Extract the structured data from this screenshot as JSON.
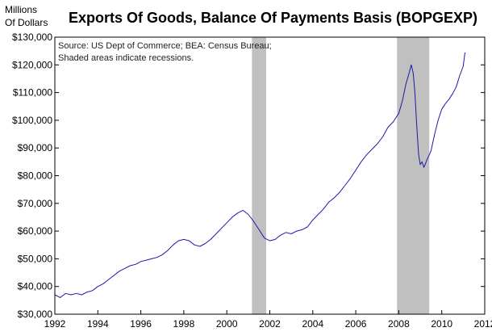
{
  "chart_data": {
    "type": "line",
    "title": "Exports Of Goods, Balance Of Payments Basis (BOPGEXP)",
    "ylabel_lines": [
      "Millions",
      "Of Dollars"
    ],
    "source_lines": [
      "Source: US Dept of Commerce; BEA: Census Bureau;",
      "Shaded areas indicate recessions."
    ],
    "xlim": [
      1992,
      2012
    ],
    "ylim": [
      30000,
      130000
    ],
    "x_ticks": [
      1992,
      1994,
      1996,
      1998,
      2000,
      2002,
      2004,
      2006,
      2008,
      2010,
      2012
    ],
    "x_tick_labels": [
      "1992",
      "1994",
      "1996",
      "1998",
      "2000",
      "2002",
      "2004",
      "2006",
      "2008",
      "2010",
      "2012"
    ],
    "y_ticks": [
      30000,
      40000,
      50000,
      60000,
      70000,
      80000,
      90000,
      100000,
      110000,
      120000,
      130000
    ],
    "y_tick_labels": [
      "$30,000",
      "$40,000",
      "$50,000",
      "$60,000",
      "$70,000",
      "$80,000",
      "$90,000",
      "$100,000",
      "$110,000",
      "$120,000",
      "$130,000"
    ],
    "recessions": [
      [
        2001.17,
        2001.83
      ],
      [
        2007.92,
        2009.42
      ]
    ],
    "recession_color": "#c0c0c0",
    "line_color": "#1a1aaa",
    "grid": false,
    "series": [
      {
        "x": [
          1992.0,
          1992.25,
          1992.5,
          1992.75,
          1993.0,
          1993.25,
          1993.5,
          1993.75,
          1994.0,
          1994.25,
          1994.5,
          1994.75,
          1995.0,
          1995.25,
          1995.5,
          1995.75,
          1996.0,
          1996.25,
          1996.5,
          1996.75,
          1997.0,
          1997.25,
          1997.5,
          1997.75,
          1998.0,
          1998.25,
          1998.5,
          1998.75,
          1999.0,
          1999.25,
          1999.5,
          1999.75,
          2000.0,
          2000.25,
          2000.5,
          2000.75,
          2001.0,
          2001.25,
          2001.5,
          2001.75,
          2002.0,
          2002.25,
          2002.5,
          2002.75,
          2003.0,
          2003.25,
          2003.5,
          2003.75,
          2004.0,
          2004.25,
          2004.5,
          2004.75,
          2005.0,
          2005.25,
          2005.5,
          2005.75,
          2006.0,
          2006.25,
          2006.5,
          2006.75,
          2007.0,
          2007.25,
          2007.5,
          2007.75,
          2008.0,
          2008.17,
          2008.33,
          2008.5,
          2008.58,
          2008.67,
          2008.75,
          2008.83,
          2008.92,
          2009.0,
          2009.08,
          2009.17,
          2009.25,
          2009.33,
          2009.42,
          2009.5,
          2009.67,
          2009.83,
          2010.0,
          2010.17,
          2010.33,
          2010.5,
          2010.67,
          2010.83,
          2011.0,
          2011.08
        ],
        "y": [
          37000,
          36000,
          37500,
          37000,
          37500,
          37000,
          38000,
          38500,
          40000,
          41000,
          42500,
          44000,
          45500,
          46500,
          47500,
          48000,
          49000,
          49500,
          50000,
          50500,
          51500,
          53000,
          55000,
          56500,
          57000,
          56500,
          55000,
          54500,
          55500,
          57000,
          59000,
          61000,
          63000,
          65000,
          66500,
          67500,
          66000,
          63500,
          60500,
          57500,
          56500,
          57000,
          58500,
          59500,
          59000,
          60000,
          60500,
          61500,
          64000,
          66000,
          68000,
          70500,
          72000,
          74000,
          76500,
          79000,
          82000,
          85000,
          87500,
          89500,
          91500,
          94000,
          97500,
          99500,
          102500,
          107000,
          113000,
          117500,
          120000,
          117000,
          110000,
          99000,
          88000,
          84000,
          85000,
          83000,
          84500,
          86000,
          87500,
          89000,
          95000,
          100000,
          104000,
          106000,
          107500,
          109500,
          112000,
          116000,
          119500,
          124500
        ]
      }
    ]
  }
}
